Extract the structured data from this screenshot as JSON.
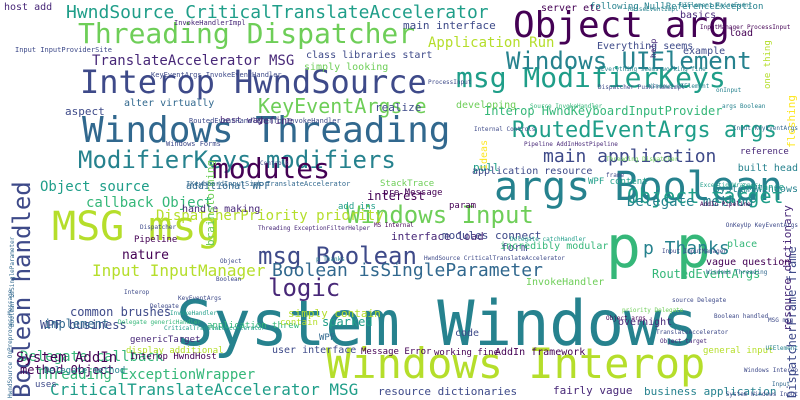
{
  "palette": [
    "#440154",
    "#482878",
    "#3e4a89",
    "#31688e",
    "#26828e",
    "#1f9e89",
    "#35b779",
    "#6ece58",
    "#b5de2b",
    "#fde725"
  ],
  "words": [
    {
      "text": "System Windows",
      "color": "#26828e"
    },
    {
      "text": "Windows Threading",
      "color": "#31688e"
    },
    {
      "text": "Windows Interop",
      "color": "#b5de2b"
    },
    {
      "text": "Interop HwndSource",
      "color": "#3e4a89"
    },
    {
      "text": "Threading Dispatcher",
      "color": "#6ece58"
    },
    {
      "text": "Object arg",
      "color": "#440154"
    },
    {
      "text": "msg ModifierKeys",
      "color": "#1f9e89"
    },
    {
      "text": "ModifierKeys modifiers",
      "color": "#26828e"
    },
    {
      "text": "args Boolean",
      "color": "#26828e"
    },
    {
      "text": "MSG msg",
      "color": "#b5de2b"
    },
    {
      "text": "p p",
      "color": "#35b779"
    },
    {
      "text": "Windows Input",
      "color": "#6ece58"
    },
    {
      "text": "Boolean handled",
      "color": "#3e4a89"
    },
    {
      "text": "Windows UIElement",
      "color": "#26828e"
    },
    {
      "text": "RoutedEventArgs args",
      "color": "#1f9e89"
    },
    {
      "text": "modules",
      "color": "#440154"
    },
    {
      "text": "msg Boolean",
      "color": "#3e4a89"
    },
    {
      "text": "logic",
      "color": "#482878"
    },
    {
      "text": "HwndSource CriticalTranslateAccelerator",
      "color": "#1f9e89"
    },
    {
      "text": "main application",
      "color": "#3e4a89"
    },
    {
      "text": "KeyEventArgs e",
      "color": "#6ece58"
    },
    {
      "text": "Object target",
      "color": "#1f9e89"
    },
    {
      "text": "Boolean isSingleParameter",
      "color": "#31688e"
    },
    {
      "text": "CriticalTranslateAccelerator MSG",
      "color": "#1f9e89"
    },
    {
      "text": "TranslateAccelerator MSG",
      "color": "#482878"
    },
    {
      "text": "p Thanks",
      "color": "#26828e"
    },
    {
      "text": "Input InputManager",
      "color": "#b5de2b"
    },
    {
      "text": "Object source",
      "color": "#1f9e89"
    },
    {
      "text": "Delegate method",
      "color": "#26828e"
    },
    {
      "text": "Threading ExceptionWrapper",
      "color": "#35b779"
    },
    {
      "text": "Delegate callback",
      "color": "#35b779"
    },
    {
      "text": "System AddIn",
      "color": "#440154"
    },
    {
      "text": "DispatcherPriority priority",
      "color": "#b5de2b"
    },
    {
      "text": "DispatcherFrame frame",
      "color": "#3e4a89"
    },
    {
      "text": "resource dictionary",
      "color": "#482878"
    },
    {
      "text": "Interop HwndKeyboardInputProvider",
      "color": "#35b779"
    },
    {
      "text": "Application Run",
      "color": "#b5de2b"
    },
    {
      "text": "callback Object",
      "color": "#35b779"
    },
    {
      "text": "method Object",
      "color": "#440154"
    },
    {
      "text": "WPF business",
      "color": "#3e4a89"
    },
    {
      "text": "common brushes",
      "color": "#3e4a89"
    },
    {
      "text": "implement",
      "color": "#31688e"
    },
    {
      "text": "sparked",
      "color": "#1f9e89"
    },
    {
      "text": "form",
      "color": "#3e4a89"
    },
    {
      "text": "nature",
      "color": "#440154"
    },
    {
      "text": "simply contain",
      "color": "#b5de2b"
    },
    {
      "text": "alter virtually",
      "color": "#31688e"
    },
    {
      "text": "handle making",
      "color": "#482878"
    },
    {
      "text": "additional WPF",
      "color": "#31688e"
    },
    {
      "text": "interest",
      "color": "#440154"
    },
    {
      "text": "pull",
      "color": "#1f9e89"
    },
    {
      "text": "application resource",
      "color": "#3e4a89"
    },
    {
      "text": "built head",
      "color": "#26828e"
    },
    {
      "text": "vague question",
      "color": "#440154"
    },
    {
      "text": "interface load",
      "color": "#482878"
    },
    {
      "text": "modules connect",
      "color": "#3e4a89"
    },
    {
      "text": "incredibly modular",
      "color": "#35b779"
    },
    {
      "text": "RoutedEventArgs",
      "color": "#35b779"
    },
    {
      "text": "overnight",
      "color": "#482878"
    },
    {
      "text": "InvokeHandler",
      "color": "#6ece58"
    },
    {
      "text": "resource dictionaries",
      "color": "#3e4a89"
    },
    {
      "text": "fairly vague",
      "color": "#482878"
    },
    {
      "text": "business application",
      "color": "#26828e"
    },
    {
      "text": "user interface",
      "color": "#3e4a89"
    },
    {
      "text": "AddIn framework",
      "color": "#440154"
    },
    {
      "text": "general input",
      "color": "#b5de2b"
    },
    {
      "text": "application threw",
      "color": "#35b779"
    },
    {
      "text": "class libraries start",
      "color": "#3e4a89"
    },
    {
      "text": "simply looking",
      "color": "#6ece58"
    },
    {
      "text": "best way",
      "color": "#482878"
    },
    {
      "text": "brainstorming",
      "color": "#6ece58"
    },
    {
      "text": "aspect",
      "color": "#3e4a89"
    },
    {
      "text": "define",
      "color": "#482878"
    },
    {
      "text": "realize",
      "color": "#3e4a89"
    },
    {
      "text": "developing",
      "color": "#6ece58"
    },
    {
      "text": "main interface",
      "color": "#3e4a89"
    },
    {
      "text": "server etc",
      "color": "#440154"
    },
    {
      "text": "Everything seems",
      "color": "#3e4a89"
    },
    {
      "text": "example",
      "color": "#3e4a89"
    },
    {
      "text": "load",
      "color": "#440154"
    },
    {
      "text": "basics",
      "color": "#482878"
    },
    {
      "text": "host add",
      "color": "#482878"
    },
    {
      "text": "System Windows",
      "color": "#26828e"
    },
    {
      "text": "reference",
      "color": "#482878"
    },
    {
      "text": "instance",
      "color": "#1f9e89"
    },
    {
      "text": "place",
      "color": "#35b779"
    },
    {
      "text": "ideas",
      "color": "#fde725"
    },
    {
      "text": "fleshing",
      "color": "#fde725"
    },
    {
      "text": "one thing",
      "color": "#b5de2b"
    },
    {
      "text": "help",
      "color": "#482878"
    },
    {
      "text": "Pipeline",
      "color": "#440154"
    },
    {
      "text": "WPF",
      "color": "#31688e"
    },
    {
      "text": "code",
      "color": "#3e4a89"
    },
    {
      "text": "uses",
      "color": "#3e4a89"
    },
    {
      "text": "Delegate method",
      "color": "#26828e"
    },
    {
      "text": "WPF content",
      "color": "#1f9e89"
    },
    {
      "text": "StackTrace",
      "color": "#6ece58"
    },
    {
      "text": "add ins",
      "color": "#1f9e89"
    },
    {
      "text": "param",
      "color": "#440154"
    },
    {
      "text": "contain",
      "color": "#b5de2b"
    },
    {
      "text": "display additional",
      "color": "#b5de2b"
    },
    {
      "text": "Message Error",
      "color": "#440154"
    },
    {
      "text": "working fine",
      "color": "#440154"
    },
    {
      "text": "following NullReferenceException",
      "color": "#26828e"
    },
    {
      "text": "pre Message",
      "color": "#440154"
    },
    {
      "text": "genericTarget",
      "color": "#482878"
    },
    {
      "text": "Interop HwndHost",
      "color": "#440154"
    },
    {
      "text": "Input InputProviderSite",
      "color": "#3e4a89"
    },
    {
      "text": "InvokeHandlerImpl",
      "color": "#482878"
    },
    {
      "text": "KeyEventArgs InvokeEventHandler",
      "color": "#3e4a89"
    },
    {
      "text": "Windows Forms",
      "color": "#3e4a89"
    },
    {
      "text": "RoutedEventHandlerInfo InvokeHandler",
      "color": "#3e4a89"
    },
    {
      "text": "IKeyboardInputSink TranslateAccelerator",
      "color": "#31688e"
    },
    {
      "text": "Delegate genericHandler",
      "color": "#35b779"
    },
    {
      "text": "Everything seems working fine",
      "color": "#26828e"
    },
    {
      "text": "Dispatcher PushFrameImpl",
      "color": "#3e4a89"
    },
    {
      "text": "UIElement RaiseEvent",
      "color": "#26828e"
    },
    {
      "text": "InputManager ProcessInput",
      "color": "#440154"
    },
    {
      "text": "Windows UIElement",
      "color": "#26828e"
    },
    {
      "text": "ExceptionWrapper",
      "color": "#1f9e89"
    },
    {
      "text": "OnKeyUp KeyEventArgs",
      "color": "#3e4a89"
    },
    {
      "text": "Internal Controls",
      "color": "#3e4a89"
    },
    {
      "text": "Pipeline AddInHostPipeline",
      "color": "#482878"
    },
    {
      "text": "Source InvokeHandler",
      "color": "#35b779"
    },
    {
      "text": "HwndSource OnPreprocessMessage",
      "color": "#31688e"
    },
    {
      "text": "RaiseEventImpl",
      "color": "#26828e"
    },
    {
      "text": "Boolean isSingleParameter",
      "color": "#31688e"
    },
    {
      "text": "HwndSource CriticalTranslateAccelerator",
      "color": "#3e4a89"
    },
    {
      "text": "Delegate catchHandler",
      "color": "#1f9e89"
    },
    {
      "text": "MS Internal",
      "color": "#440154"
    },
    {
      "text": "AddIn Pipeline",
      "color": "#440154"
    },
    {
      "text": "ProcessInput",
      "color": "#3e4a89"
    },
    {
      "text": "Threading ExceptionFilterHelper",
      "color": "#482878"
    },
    {
      "text": "p Thanks",
      "color": "#26828e"
    },
    {
      "text": "Controls",
      "color": "#3e4a89"
    },
    {
      "text": "Threading Dispatcher",
      "color": "#6ece58"
    },
    {
      "text": "frame",
      "color": "#3e4a89"
    },
    {
      "text": "onInput",
      "color": "#26828e"
    },
    {
      "text": "args Boolean",
      "color": "#26828e"
    },
    {
      "text": "Input KeyEventArgs",
      "color": "#31688e"
    },
    {
      "text": "priority Delegate",
      "color": "#6ece58"
    },
    {
      "text": "Object args",
      "color": "#440154"
    },
    {
      "text": "TranslateAccelerator",
      "color": "#3e4a89"
    },
    {
      "text": "Object target",
      "color": "#482878"
    },
    {
      "text": "source Delegate",
      "color": "#3e4a89"
    },
    {
      "text": "Windows Threading",
      "color": "#31688e"
    },
    {
      "text": "Input InputManager",
      "color": "#3e4a89"
    },
    {
      "text": "Boolean handled",
      "color": "#3e4a89"
    },
    {
      "text": "MSG msg",
      "color": "#3e4a89"
    },
    {
      "text": "UIElement",
      "color": "#26828e"
    },
    {
      "text": "System Windows Input",
      "color": "#3e4a89"
    },
    {
      "text": "Windows Interop",
      "color": "#3e4a89"
    },
    {
      "text": "Input",
      "color": "#31688e"
    },
    {
      "text": "Dispatcher",
      "color": "#3e4a89"
    },
    {
      "text": "Interop",
      "color": "#3e4a89"
    },
    {
      "text": "KeyEventArgs",
      "color": "#3e4a89"
    },
    {
      "text": "Object",
      "color": "#3e4a89"
    },
    {
      "text": "Boolean",
      "color": "#3e4a89"
    },
    {
      "text": "Delegate",
      "color": "#3e4a89"
    },
    {
      "text": "InvokeHandler",
      "color": "#1f9e89"
    },
    {
      "text": "CriticalTranslateAccelerator",
      "color": "#1f9e89"
    },
    {
      "text": "ModifierKeys",
      "color": "#3e4a89"
    },
    {
      "text": "AddInHostPipeline",
      "color": "#440154"
    },
    {
      "text": "HwndSource",
      "color": "#3e4a89"
    },
    {
      "text": "System",
      "color": "#26828e"
    },
    {
      "text": "Windows",
      "color": "#26828e"
    }
  ]
}
